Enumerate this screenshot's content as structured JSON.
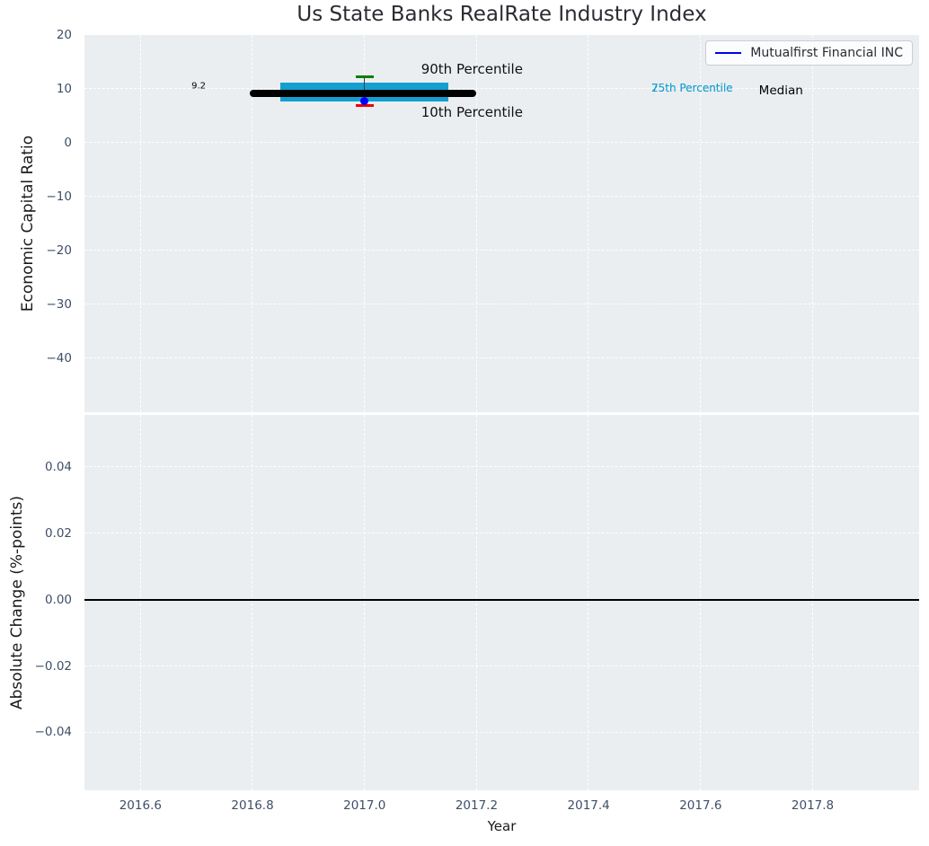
{
  "title": "Us State Banks RealRate Industry Index",
  "xlabel": "Year",
  "legend": {
    "label": "Mutualfirst Financial INC",
    "line_color": "#0000ee"
  },
  "chart_data": [
    {
      "type": "boxplot",
      "ylabel": "Economic Capital Ratio",
      "xlim": [
        2016.5,
        2017.99
      ],
      "ylim": [
        -50,
        20
      ],
      "grid": true,
      "show_xtick_labels": false,
      "xticks": [
        {
          "v": 2016.6,
          "label": "2016.6"
        },
        {
          "v": 2016.8,
          "label": "2016.8"
        },
        {
          "v": 2017.0,
          "label": "2017.0"
        },
        {
          "v": 2017.2,
          "label": "2017.2"
        },
        {
          "v": 2017.4,
          "label": "2017.4"
        },
        {
          "v": 2017.6,
          "label": "2017.6"
        },
        {
          "v": 2017.8,
          "label": "2017.8"
        }
      ],
      "yticks": [
        {
          "v": 20,
          "label": "20"
        },
        {
          "v": 10,
          "label": "10"
        },
        {
          "v": 0,
          "label": "0"
        },
        {
          "v": -10,
          "label": "−10"
        },
        {
          "v": -20,
          "label": "−20"
        },
        {
          "v": -30,
          "label": "−30"
        },
        {
          "v": -40,
          "label": "−40"
        }
      ],
      "box": {
        "x": 2017.0,
        "median": 9.2,
        "q1": 7.7,
        "q3": 11.2,
        "p10": 7.0,
        "p90": 12.2,
        "company_value": 7.8,
        "box_x_range": [
          2016.85,
          2017.15
        ],
        "median_x_range": [
          2016.795,
          2017.2
        ],
        "cap_half_width": 0.016,
        "colors": {
          "box": "#149fd1",
          "median": "#000000",
          "p90_cap": "#008000",
          "p10_cap": "#ee0000",
          "marker": "#0000ff",
          "whisker": "#3a3a3a"
        }
      },
      "annotations": [
        {
          "name": "median-value-label",
          "text": "9.2",
          "x": 2016.691,
          "y": 10.5,
          "size": 10,
          "color": "#000000"
        },
        {
          "name": "p90-label",
          "text": "90th Percentile",
          "x": 2017.101,
          "y": 13.7,
          "size": 15,
          "color": "#111111"
        },
        {
          "name": "p10-label",
          "text": "10th Percentile",
          "x": 2017.101,
          "y": 5.7,
          "size": 15,
          "color": "#111111"
        },
        {
          "name": "p75-label",
          "text": "75th Percentile",
          "x": 2017.512,
          "y": 10.2,
          "size": 12,
          "color": "#16a0ce"
        },
        {
          "name": "p25-label",
          "text": "25th Percentile",
          "x": 2017.512,
          "y": 10.2,
          "size": 12,
          "color": "#16a0ce"
        },
        {
          "name": "median-label",
          "text": "Median",
          "x": 2017.704,
          "y": 9.6,
          "size": 13.5,
          "color": "#000000"
        }
      ]
    },
    {
      "type": "line",
      "ylabel": "Absolute Change (%-points)",
      "xlim": [
        2016.5,
        2017.99
      ],
      "ylim": [
        -0.0575,
        0.0557
      ],
      "grid": true,
      "show_xtick_labels": true,
      "zero_line": true,
      "series": [],
      "xticks": [
        {
          "v": 2016.6,
          "label": "2016.6"
        },
        {
          "v": 2016.8,
          "label": "2016.8"
        },
        {
          "v": 2017.0,
          "label": "2017.0"
        },
        {
          "v": 2017.2,
          "label": "2017.2"
        },
        {
          "v": 2017.4,
          "label": "2017.4"
        },
        {
          "v": 2017.6,
          "label": "2017.6"
        },
        {
          "v": 2017.8,
          "label": "2017.8"
        }
      ],
      "yticks": [
        {
          "v": 0.04,
          "label": "0.04"
        },
        {
          "v": 0.02,
          "label": "0.02"
        },
        {
          "v": 0.0,
          "label": "0.00"
        },
        {
          "v": -0.02,
          "label": "−0.02"
        },
        {
          "v": -0.04,
          "label": "−0.04"
        }
      ]
    }
  ]
}
